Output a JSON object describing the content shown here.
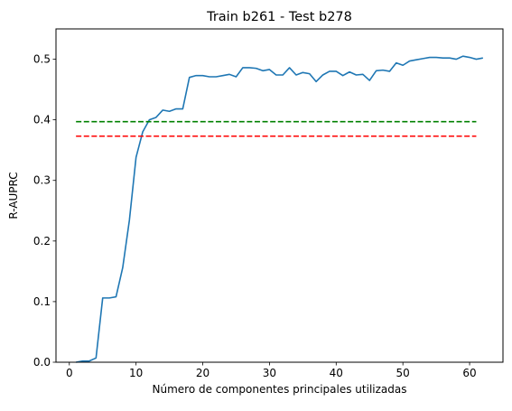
{
  "chart_data": {
    "type": "line",
    "title": "Train b261 - Test b278",
    "xlabel": "Número de componentes principales utilizadas",
    "ylabel": "R-AUPRC",
    "xlim": [
      -2,
      65
    ],
    "ylim": [
      0.0,
      0.55
    ],
    "xticks": [
      0,
      10,
      20,
      30,
      40,
      50,
      60
    ],
    "yticks": [
      0.0,
      0.1,
      0.2,
      0.3,
      0.4,
      0.5
    ],
    "ytick_labels": [
      "0.0",
      "0.1",
      "0.2",
      "0.3",
      "0.4",
      "0.5"
    ],
    "grid": false,
    "series": [
      {
        "style": "solid",
        "color": "#1f77b4",
        "x": [
          1,
          2,
          3,
          4,
          5,
          6,
          7,
          8,
          9,
          10,
          11,
          12,
          13,
          14,
          15,
          16,
          17,
          18,
          19,
          20,
          21,
          22,
          23,
          24,
          25,
          26,
          27,
          28,
          29,
          30,
          31,
          32,
          33,
          34,
          35,
          36,
          37,
          38,
          39,
          40,
          41,
          42,
          43,
          44,
          45,
          46,
          47,
          48,
          49,
          50,
          51,
          52,
          53,
          54,
          55,
          56,
          57,
          58,
          59,
          60,
          61,
          62
        ],
        "y": [
          0.0,
          0.002,
          0.002,
          0.007,
          0.106,
          0.106,
          0.108,
          0.156,
          0.234,
          0.338,
          0.38,
          0.4,
          0.404,
          0.416,
          0.414,
          0.418,
          0.418,
          0.47,
          0.473,
          0.473,
          0.471,
          0.471,
          0.473,
          0.475,
          0.471,
          0.486,
          0.486,
          0.485,
          0.481,
          0.483,
          0.474,
          0.474,
          0.486,
          0.474,
          0.478,
          0.476,
          0.463,
          0.474,
          0.48,
          0.48,
          0.473,
          0.479,
          0.474,
          0.475,
          0.465,
          0.481,
          0.482,
          0.48,
          0.494,
          0.49,
          0.497,
          0.499,
          0.501,
          0.503,
          0.503,
          0.502,
          0.502,
          0.5,
          0.505,
          0.503,
          0.5,
          0.502
        ]
      },
      {
        "style": "dashed",
        "color": "#008000",
        "x": [
          1,
          61
        ],
        "y": [
          0.397,
          0.397
        ]
      },
      {
        "style": "dashed",
        "color": "#ff0000",
        "x": [
          1,
          61
        ],
        "y": [
          0.373,
          0.373
        ]
      }
    ]
  }
}
